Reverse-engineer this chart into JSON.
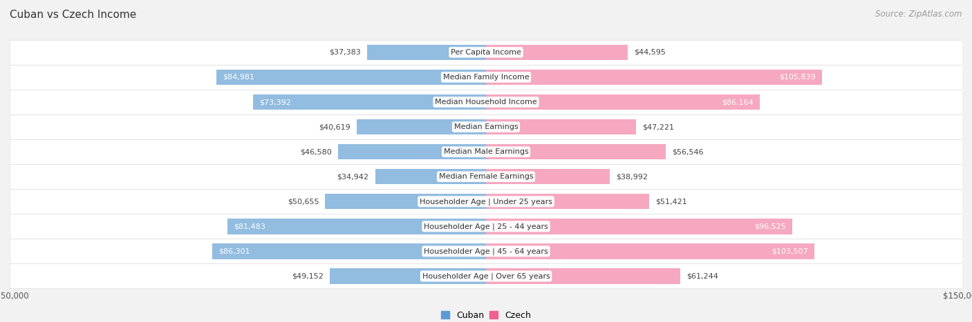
{
  "title": "Cuban vs Czech Income",
  "source": "Source: ZipAtlas.com",
  "categories": [
    "Per Capita Income",
    "Median Family Income",
    "Median Household Income",
    "Median Earnings",
    "Median Male Earnings",
    "Median Female Earnings",
    "Householder Age | Under 25 years",
    "Householder Age | 25 - 44 years",
    "Householder Age | 45 - 64 years",
    "Householder Age | Over 65 years"
  ],
  "cuban_values": [
    37383,
    84981,
    73392,
    40619,
    46580,
    34942,
    50655,
    81483,
    86301,
    49152
  ],
  "czech_values": [
    44595,
    105839,
    86164,
    47221,
    56546,
    38992,
    51421,
    96525,
    103507,
    61244
  ],
  "cuban_labels": [
    "$37,383",
    "$84,981",
    "$73,392",
    "$40,619",
    "$46,580",
    "$34,942",
    "$50,655",
    "$81,483",
    "$86,301",
    "$49,152"
  ],
  "czech_labels": [
    "$44,595",
    "$105,839",
    "$86,164",
    "$47,221",
    "$56,546",
    "$38,992",
    "$51,421",
    "$96,525",
    "$103,507",
    "$61,244"
  ],
  "cuban_color_bar": "#92bce0",
  "czech_color_bar": "#f5a8bf",
  "cuban_color_solid": "#5b9bd5",
  "czech_color_solid": "#f06090",
  "cuban_white_threshold": 65000,
  "czech_white_threshold": 65000,
  "axis_limit": 150000,
  "background_color": "#f2f2f2",
  "row_bg_color": "#ffffff",
  "row_border_color": "#dddddd",
  "title_fontsize": 11,
  "source_fontsize": 8.5,
  "label_fontsize": 8,
  "category_fontsize": 8,
  "legend_fontsize": 9,
  "axis_label_fontsize": 8.5,
  "bar_height": 0.62
}
